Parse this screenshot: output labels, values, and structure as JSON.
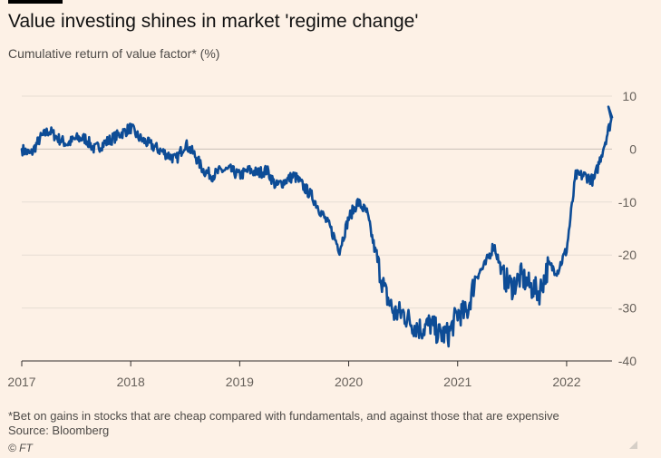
{
  "header": {
    "title": "Value investing shines in market 'regime change'",
    "subtitle": "Cumulative return of value factor* (%)"
  },
  "footer": {
    "note": "*Bet on gains in stocks that are cheap compared with fundamentals, and against those that are expensive",
    "source": "Source: Bloomberg",
    "copyright": "© FT"
  },
  "colors": {
    "background": "#fdf1e6",
    "line": "#0d4c96",
    "grid": "#e6ddd3",
    "zero": "#c9c0b7",
    "axis_text": "#66605a"
  },
  "chart_data": {
    "type": "line",
    "title": "Value investing shines in market 'regime change'",
    "subtitle": "Cumulative return of value factor* (%)",
    "xlabel": "",
    "ylabel": "",
    "x_ticks": [
      "2017",
      "2018",
      "2019",
      "2020",
      "2021",
      "2022"
    ],
    "y_ticks": [
      10,
      0,
      -10,
      -20,
      -30,
      -40
    ],
    "xlim": [
      "2017-01",
      "2022-06"
    ],
    "ylim": [
      -40,
      10
    ],
    "grid": true,
    "legend": "none",
    "series": [
      {
        "values": [
          [
            "2017-01",
            0
          ],
          [
            "2017-02",
            -1
          ],
          [
            "2017-03",
            2
          ],
          [
            "2017-04",
            3.5
          ],
          [
            "2017-05",
            2
          ],
          [
            "2017-06",
            1
          ],
          [
            "2017-07",
            2
          ],
          [
            "2017-08",
            2
          ],
          [
            "2017-09",
            0
          ],
          [
            "2017-10",
            1
          ],
          [
            "2017-11",
            2
          ],
          [
            "2017-12",
            3
          ],
          [
            "2018-01",
            4
          ],
          [
            "2018-02",
            2
          ],
          [
            "2018-03",
            1
          ],
          [
            "2018-04",
            0
          ],
          [
            "2018-05",
            -1
          ],
          [
            "2018-06",
            -2
          ],
          [
            "2018-07",
            1
          ],
          [
            "2018-08",
            -1
          ],
          [
            "2018-09",
            -4
          ],
          [
            "2018-10",
            -5
          ],
          [
            "2018-11",
            -4
          ],
          [
            "2018-12",
            -4
          ],
          [
            "2019-01",
            -5
          ],
          [
            "2019-02",
            -4
          ],
          [
            "2019-03",
            -4.5
          ],
          [
            "2019-04",
            -4
          ],
          [
            "2019-05",
            -7
          ],
          [
            "2019-06",
            -6
          ],
          [
            "2019-07",
            -5
          ],
          [
            "2019-08",
            -7
          ],
          [
            "2019-09",
            -9
          ],
          [
            "2019-10",
            -12
          ],
          [
            "2019-11",
            -15
          ],
          [
            "2019-12",
            -19
          ],
          [
            "2020-01",
            -13
          ],
          [
            "2020-02",
            -10
          ],
          [
            "2020-03",
            -12
          ],
          [
            "2020-04",
            -20
          ],
          [
            "2020-05",
            -27
          ],
          [
            "2020-06",
            -31
          ],
          [
            "2020-07",
            -31
          ],
          [
            "2020-08",
            -33
          ],
          [
            "2020-09",
            -34
          ],
          [
            "2020-10",
            -33
          ],
          [
            "2020-11",
            -35
          ],
          [
            "2020-12",
            -35
          ],
          [
            "2021-01",
            -31
          ],
          [
            "2021-02",
            -31
          ],
          [
            "2021-03",
            -24
          ],
          [
            "2021-04",
            -22
          ],
          [
            "2021-05",
            -18
          ],
          [
            "2021-06",
            -24
          ],
          [
            "2021-07",
            -26
          ],
          [
            "2021-08",
            -24
          ],
          [
            "2021-09",
            -26
          ],
          [
            "2021-10",
            -27
          ],
          [
            "2021-11",
            -22
          ],
          [
            "2021-12",
            -23
          ],
          [
            "2022-01",
            -19
          ],
          [
            "2022-02",
            -5
          ],
          [
            "2022-03",
            -5
          ],
          [
            "2022-04",
            -6
          ],
          [
            "2022-05",
            0
          ],
          [
            "2022-06",
            6
          ]
        ]
      }
    ]
  }
}
